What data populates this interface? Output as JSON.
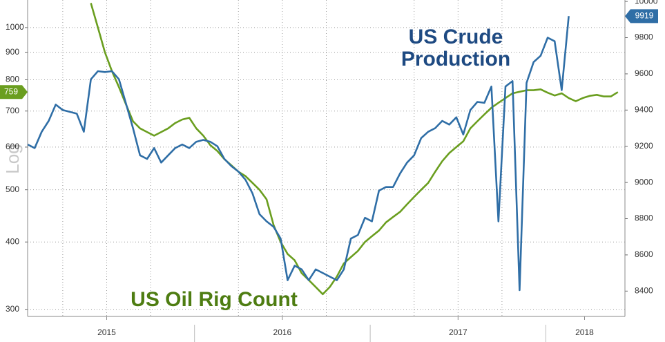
{
  "chart_data": {
    "type": "line",
    "ylabel": "Log",
    "log_y": true,
    "grid": true,
    "x": [
      2015.05,
      2015.09,
      2015.13,
      2015.17,
      2015.21,
      2015.25,
      2015.29,
      2015.33,
      2015.37,
      2015.41,
      2015.45,
      2015.49,
      2015.53,
      2015.57,
      2015.61,
      2015.65,
      2015.69,
      2015.73,
      2015.77,
      2015.81,
      2015.85,
      2015.89,
      2015.93,
      2015.97,
      2016.01,
      2016.05,
      2016.09,
      2016.13,
      2016.17,
      2016.21,
      2016.25,
      2016.29,
      2016.33,
      2016.37,
      2016.41,
      2016.45,
      2016.49,
      2016.53,
      2016.57,
      2016.61,
      2016.65,
      2016.69,
      2016.73,
      2016.77,
      2016.81,
      2016.85,
      2016.89,
      2016.93,
      2016.97,
      2017.01,
      2017.05,
      2017.09,
      2017.13,
      2017.17,
      2017.21,
      2017.25,
      2017.29,
      2017.33,
      2017.37,
      2017.41,
      2017.45,
      2017.49,
      2017.53,
      2017.57,
      2017.61,
      2017.65,
      2017.69,
      2017.73,
      2017.77,
      2017.81,
      2017.85,
      2017.89,
      2017.93,
      2017.97,
      2018.01,
      2018.05,
      2018.09,
      2018.13,
      2018.17,
      2018.21,
      2018.25,
      2018.29,
      2018.33,
      2018.37,
      2018.41
    ],
    "xlim": [
      2015.05,
      2018.45
    ],
    "xticks": [
      {
        "value": 2015.5,
        "label": "2015"
      },
      {
        "value": 2016.5,
        "label": "2016"
      },
      {
        "value": 2017.5,
        "label": "2017"
      },
      {
        "value": 2018.22,
        "label": "2018"
      }
    ],
    "ylim": [
      291,
      1125
    ],
    "yticks": [
      300,
      400,
      500,
      600,
      700,
      800,
      900,
      1000
    ],
    "y2lim": [
      8260,
      10008
    ],
    "y2ticks": [
      8400,
      8600,
      8800,
      9000,
      9200,
      9400,
      9600,
      9800,
      10000
    ],
    "series": [
      {
        "name": "US Oil Rig Count",
        "color": "#6a9e1f",
        "label_color": "#4e7d12",
        "axis": "y",
        "values": [
          null,
          null,
          null,
          null,
          null,
          null,
          null,
          null,
          null,
          1110,
          1000,
          900,
          830,
          775,
          720,
          670,
          650,
          640,
          630,
          640,
          650,
          665,
          675,
          680,
          650,
          630,
          605,
          590,
          570,
          555,
          540,
          530,
          515,
          500,
          480,
          430,
          400,
          380,
          370,
          350,
          340,
          330,
          320,
          330,
          345,
          365,
          375,
          385,
          400,
          410,
          420,
          435,
          445,
          455,
          470,
          485,
          500,
          515,
          540,
          565,
          585,
          600,
          615,
          650,
          670,
          690,
          710,
          725,
          740,
          755,
          760,
          765,
          765,
          768,
          757,
          748,
          755,
          740,
          730,
          740,
          747,
          750,
          745,
          745,
          759
        ]
      },
      {
        "name": "US Crude Production",
        "color": "#2f6ea6",
        "label_color": "#1e4a82",
        "axis": "y2",
        "values": [
          9210,
          9190,
          9280,
          9340,
          9430,
          9400,
          9390,
          9380,
          9280,
          9570,
          9615,
          9610,
          9615,
          9570,
          9435,
          9300,
          9150,
          9130,
          9190,
          9110,
          9150,
          9190,
          9210,
          9190,
          9225,
          9235,
          9225,
          9200,
          9130,
          9090,
          9060,
          9015,
          8940,
          8825,
          8785,
          8755,
          8690,
          8460,
          8540,
          8520,
          8460,
          8520,
          8500,
          8480,
          8460,
          8520,
          8690,
          8710,
          8805,
          8785,
          8955,
          8975,
          8975,
          9050,
          9110,
          9150,
          9245,
          9280,
          9300,
          9340,
          9320,
          9360,
          9265,
          9400,
          9445,
          9440,
          9530,
          8785,
          9530,
          9560,
          8405,
          9550,
          9665,
          9700,
          9800,
          9780,
          9510,
          9919,
          null,
          null,
          null,
          null,
          null,
          null,
          null
        ]
      }
    ]
  }
}
